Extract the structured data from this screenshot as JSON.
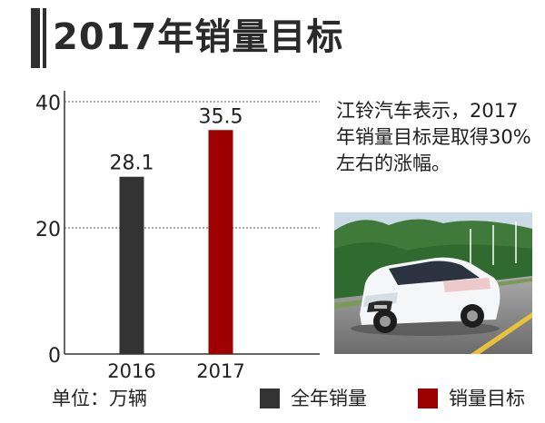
{
  "title": "2017年销量目标",
  "note": "江铃汽车表示，2017年销量目标是取得30%左右的涨幅。",
  "unit": "单位：万辆",
  "colors": {
    "series_sales": "#333333",
    "series_target": "#9e0000"
  },
  "chart_data": {
    "type": "bar",
    "categories": [
      "2016",
      "2017"
    ],
    "series": [
      {
        "name": "全年销量",
        "values": [
          28.1,
          null
        ],
        "color": "#333333"
      },
      {
        "name": "销量目标",
        "values": [
          null,
          35.5
        ],
        "color": "#9e0000"
      }
    ],
    "data_labels": [
      "28.1",
      "35.5"
    ],
    "yticks": [
      "0",
      "20",
      "40"
    ],
    "ylim": [
      0,
      40
    ],
    "grid": true,
    "legend": "bottom-right"
  }
}
